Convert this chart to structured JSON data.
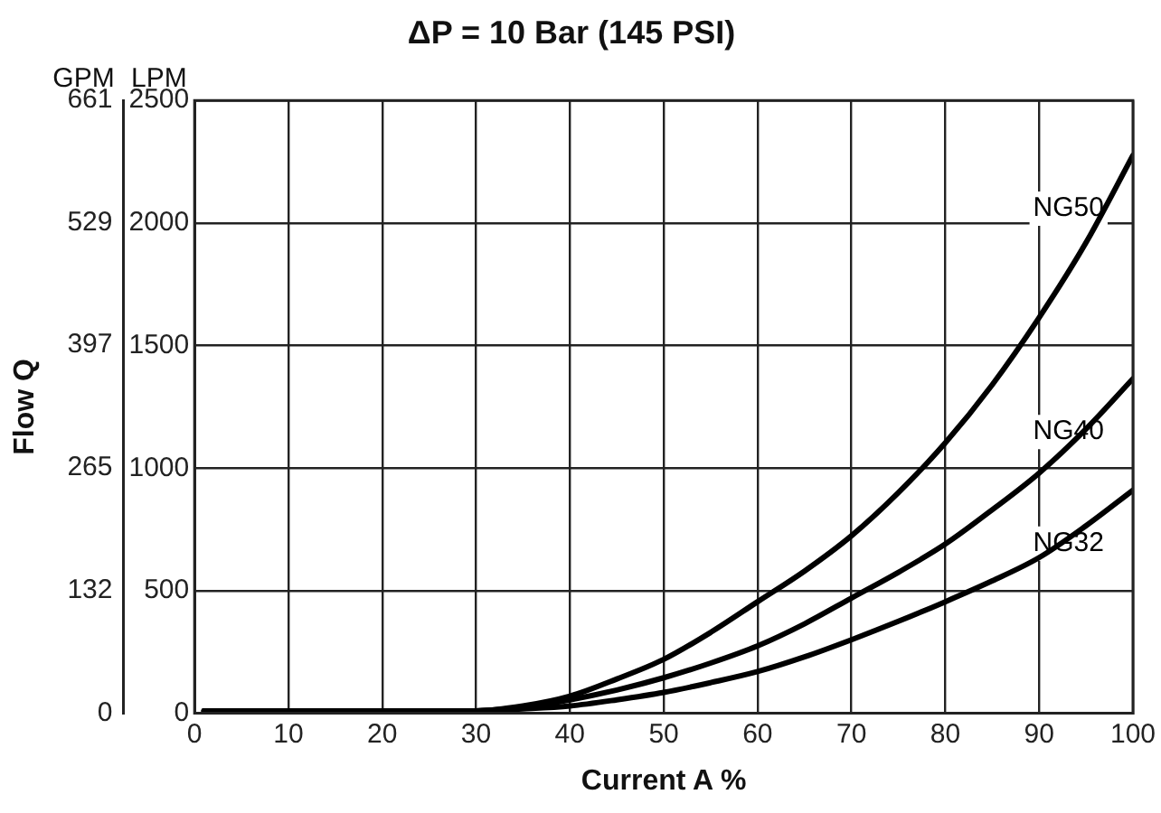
{
  "chart_data": {
    "type": "line",
    "title": "ΔP = 10 Bar (145 PSI)",
    "xlabel": "Current A %",
    "ylabel": "LPM",
    "y2label": "GPM",
    "annotations": [
      "Flow Q"
    ],
    "x": [
      1,
      10,
      20,
      30,
      35,
      40,
      45,
      50,
      55,
      60,
      65,
      70,
      75,
      80,
      85,
      90,
      95,
      100
    ],
    "series": [
      {
        "name": "NG50",
        "color": "#000000",
        "values": [
          10,
          10,
          10,
          10,
          30,
          70,
          140,
          220,
          330,
          455,
          580,
          724,
          900,
          1103,
          1340,
          1614,
          1920,
          2276
        ]
      },
      {
        "name": "NG40",
        "color": "#000000",
        "values": [
          10,
          10,
          10,
          10,
          25,
          55,
          95,
          145,
          205,
          275,
          365,
          470,
          575,
          690,
          830,
          980,
          1160,
          1365
        ]
      },
      {
        "name": "NG32",
        "color": "#000000",
        "values": [
          10,
          10,
          10,
          10,
          18,
          30,
          55,
          85,
          125,
          170,
          230,
          300,
          375,
          455,
          540,
          635,
          765,
          910
        ]
      }
    ],
    "xlim": [
      0,
      100
    ],
    "xticks": [
      0,
      10,
      20,
      30,
      40,
      50,
      60,
      70,
      80,
      90,
      100
    ],
    "ylim": [
      0,
      2500
    ],
    "yticks": [
      0,
      500,
      1000,
      1500,
      2000,
      2500
    ],
    "y2lim": [
      0,
      661
    ],
    "y2ticks": [
      0,
      132,
      265,
      397,
      529,
      661
    ],
    "grid": true,
    "legend": false,
    "marker": "none",
    "line_style": "solid"
  }
}
